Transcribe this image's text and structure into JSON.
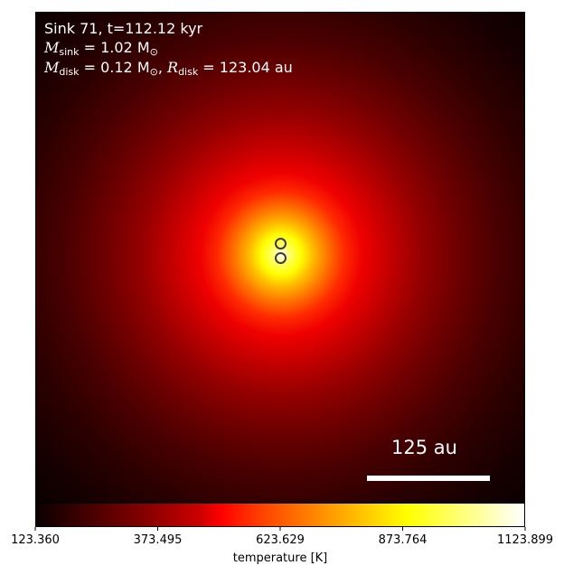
{
  "chart_data": {
    "type": "heatmap",
    "title_line1": "Sink 71, t=112.12 kyr",
    "title_line2_label": "M",
    "title_line2_sub": "sink",
    "title_line2_value": " = 1.02 M",
    "title_line2_sun": "⊙",
    "title_line3_label": "M",
    "title_line3_sub": "disk",
    "title_line3_value": " = 0.12 M",
    "title_line3_sun": "⊙",
    "title_line3_sep": ", ",
    "title_line3_r_label": "R",
    "title_line3_r_sub": "disk",
    "title_line3_r_value": " = 123.04 au",
    "scale_bar_label": "125 au",
    "colorbar": {
      "label": "temperature [K]",
      "vmin": 123.36,
      "vmax": 1123.899,
      "ticks": [
        "123.360",
        "373.495",
        "623.629",
        "873.764",
        "1123.899"
      ],
      "colormap": "hot"
    },
    "sinks": [
      {
        "name": "sink-a"
      },
      {
        "name": "sink-b"
      }
    ]
  }
}
